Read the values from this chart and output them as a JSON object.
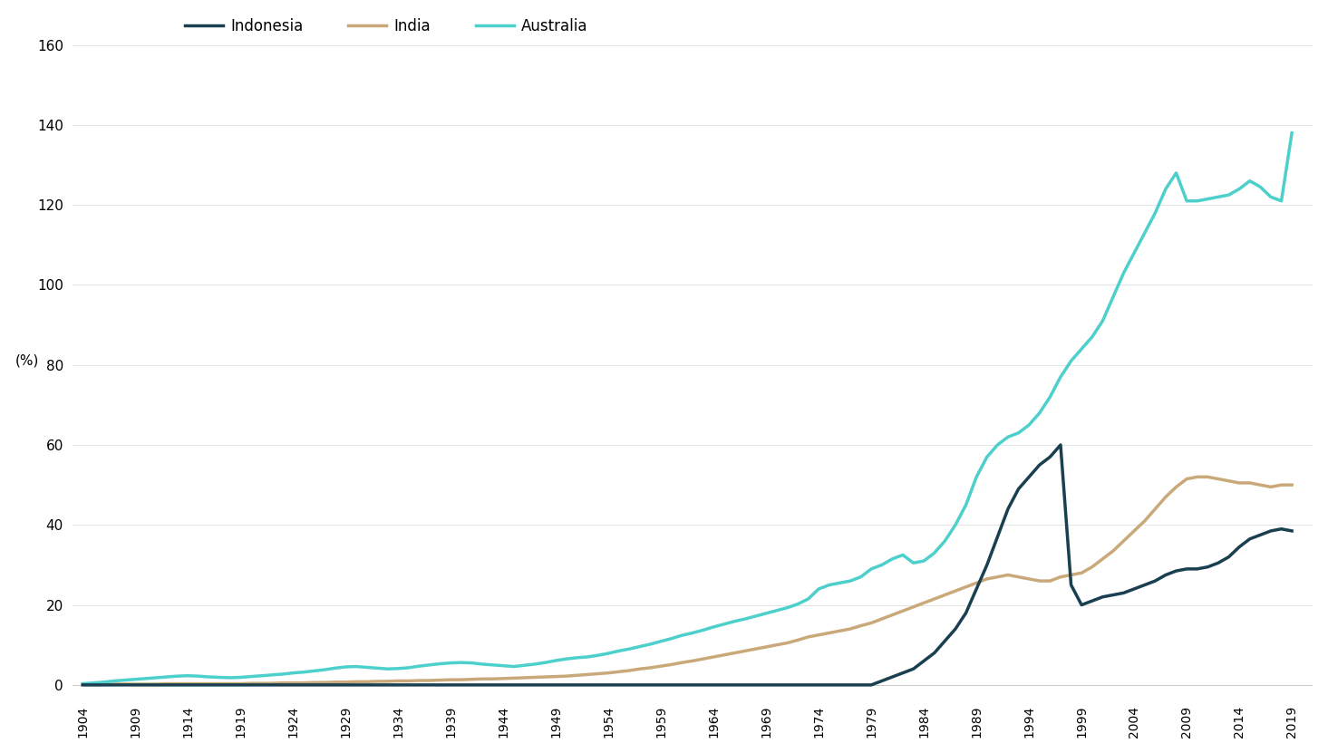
{
  "ylabel": "(%)",
  "background_color": "#ffffff",
  "colors": {
    "Indonesia": "#1a3f50",
    "India": "#c9a97a",
    "Australia": "#4dd0cc"
  },
  "line_width": 2.5,
  "yticks": [
    0,
    20,
    40,
    60,
    80,
    100,
    120,
    140,
    160
  ],
  "ylim": [
    -3,
    165
  ],
  "xlim": [
    1903,
    2021
  ],
  "xtick_years": [
    1904,
    1909,
    1914,
    1919,
    1924,
    1929,
    1934,
    1939,
    1944,
    1949,
    1954,
    1959,
    1964,
    1969,
    1974,
    1979,
    1984,
    1989,
    1994,
    1999,
    2004,
    2009,
    2014,
    2019
  ],
  "australia": {
    "years": [
      1904,
      1905,
      1906,
      1907,
      1908,
      1909,
      1910,
      1911,
      1912,
      1913,
      1914,
      1915,
      1916,
      1917,
      1918,
      1919,
      1920,
      1921,
      1922,
      1923,
      1924,
      1925,
      1926,
      1927,
      1928,
      1929,
      1930,
      1931,
      1932,
      1933,
      1934,
      1935,
      1936,
      1937,
      1938,
      1939,
      1940,
      1941,
      1942,
      1943,
      1944,
      1945,
      1946,
      1947,
      1948,
      1949,
      1950,
      1951,
      1952,
      1953,
      1954,
      1955,
      1956,
      1957,
      1958,
      1959,
      1960,
      1961,
      1962,
      1963,
      1964,
      1965,
      1966,
      1967,
      1968,
      1969,
      1970,
      1971,
      1972,
      1973,
      1974,
      1975,
      1976,
      1977,
      1978,
      1979,
      1980,
      1981,
      1982,
      1983,
      1984,
      1985,
      1986,
      1987,
      1988,
      1989,
      1990,
      1991,
      1992,
      1993,
      1994,
      1995,
      1996,
      1997,
      1998,
      1999,
      2000,
      2001,
      2002,
      2003,
      2004,
      2005,
      2006,
      2007,
      2008,
      2009,
      2010,
      2011,
      2012,
      2013,
      2014,
      2015,
      2016,
      2017,
      2018,
      2019
    ],
    "values": [
      0.3,
      0.5,
      0.7,
      1.0,
      1.2,
      1.4,
      1.6,
      1.8,
      2.0,
      2.2,
      2.3,
      2.2,
      2.0,
      1.9,
      1.8,
      1.9,
      2.1,
      2.3,
      2.5,
      2.7,
      3.0,
      3.2,
      3.5,
      3.8,
      4.2,
      4.5,
      4.6,
      4.4,
      4.2,
      4.0,
      4.1,
      4.3,
      4.7,
      5.0,
      5.3,
      5.5,
      5.6,
      5.5,
      5.2,
      5.0,
      4.8,
      4.6,
      4.9,
      5.2,
      5.6,
      6.1,
      6.5,
      6.8,
      7.0,
      7.4,
      7.9,
      8.5,
      9.0,
      9.6,
      10.2,
      10.9,
      11.6,
      12.4,
      13.0,
      13.7,
      14.5,
      15.2,
      15.9,
      16.5,
      17.2,
      17.9,
      18.6,
      19.3,
      20.2,
      21.5,
      24.0,
      25.0,
      25.5,
      26.0,
      27.0,
      29.0,
      30.0,
      31.5,
      32.5,
      30.5,
      31.0,
      33.0,
      36.0,
      40.0,
      45.0,
      52.0,
      57.0,
      60.0,
      62.0,
      63.0,
      65.0,
      68.0,
      72.0,
      77.0,
      81.0,
      84.0,
      87.0,
      91.0,
      97.0,
      103.0,
      108.0,
      113.0,
      118.0,
      124.0,
      128.0,
      121.0,
      121.0,
      121.5,
      122.0,
      122.5,
      124.0,
      126.0,
      124.5,
      122.0,
      121.0,
      138.0
    ]
  },
  "india": {
    "years": [
      1904,
      1905,
      1906,
      1907,
      1908,
      1909,
      1910,
      1911,
      1912,
      1913,
      1914,
      1915,
      1916,
      1917,
      1918,
      1919,
      1920,
      1921,
      1922,
      1923,
      1924,
      1925,
      1926,
      1927,
      1928,
      1929,
      1930,
      1931,
      1932,
      1933,
      1934,
      1935,
      1936,
      1937,
      1938,
      1939,
      1940,
      1941,
      1942,
      1943,
      1944,
      1945,
      1946,
      1947,
      1948,
      1949,
      1950,
      1951,
      1952,
      1953,
      1954,
      1955,
      1956,
      1957,
      1958,
      1959,
      1960,
      1961,
      1962,
      1963,
      1964,
      1965,
      1966,
      1967,
      1968,
      1969,
      1970,
      1971,
      1972,
      1973,
      1974,
      1975,
      1976,
      1977,
      1978,
      1979,
      1980,
      1981,
      1982,
      1983,
      1984,
      1985,
      1986,
      1987,
      1988,
      1989,
      1990,
      1991,
      1992,
      1993,
      1994,
      1995,
      1996,
      1997,
      1998,
      1999,
      2000,
      2001,
      2002,
      2003,
      2004,
      2005,
      2006,
      2007,
      2008,
      2009,
      2010,
      2011,
      2012,
      2013,
      2014,
      2015,
      2016,
      2017,
      2018,
      2019
    ],
    "values": [
      0.1,
      0.1,
      0.1,
      0.2,
      0.2,
      0.2,
      0.2,
      0.2,
      0.3,
      0.3,
      0.3,
      0.3,
      0.3,
      0.3,
      0.3,
      0.3,
      0.4,
      0.4,
      0.4,
      0.5,
      0.5,
      0.5,
      0.6,
      0.6,
      0.7,
      0.7,
      0.8,
      0.8,
      0.9,
      0.9,
      1.0,
      1.0,
      1.1,
      1.1,
      1.2,
      1.3,
      1.3,
      1.4,
      1.5,
      1.5,
      1.6,
      1.7,
      1.8,
      1.9,
      2.0,
      2.1,
      2.2,
      2.4,
      2.6,
      2.8,
      3.0,
      3.3,
      3.6,
      4.0,
      4.3,
      4.7,
      5.1,
      5.6,
      6.0,
      6.5,
      7.0,
      7.5,
      8.0,
      8.5,
      9.0,
      9.5,
      10.0,
      10.5,
      11.2,
      12.0,
      12.5,
      13.0,
      13.5,
      14.0,
      14.8,
      15.5,
      16.5,
      17.5,
      18.5,
      19.5,
      20.5,
      21.5,
      22.5,
      23.5,
      24.5,
      25.5,
      26.5,
      27.0,
      27.5,
      27.0,
      26.5,
      26.0,
      26.0,
      27.0,
      27.5,
      28.0,
      29.5,
      31.5,
      33.5,
      36.0,
      38.5,
      41.0,
      44.0,
      47.0,
      49.5,
      51.5,
      52.0,
      52.0,
      51.5,
      51.0,
      50.5,
      50.5,
      50.0,
      49.5,
      50.0,
      50.0
    ]
  },
  "indonesia": {
    "years": [
      1904,
      1905,
      1906,
      1907,
      1908,
      1909,
      1910,
      1911,
      1912,
      1913,
      1914,
      1915,
      1916,
      1917,
      1918,
      1919,
      1920,
      1921,
      1922,
      1923,
      1924,
      1925,
      1926,
      1927,
      1928,
      1929,
      1930,
      1931,
      1932,
      1933,
      1934,
      1935,
      1936,
      1937,
      1938,
      1939,
      1940,
      1941,
      1942,
      1943,
      1944,
      1945,
      1946,
      1947,
      1948,
      1949,
      1950,
      1951,
      1952,
      1953,
      1954,
      1955,
      1956,
      1957,
      1958,
      1959,
      1960,
      1961,
      1962,
      1963,
      1964,
      1965,
      1966,
      1967,
      1968,
      1969,
      1970,
      1971,
      1972,
      1973,
      1974,
      1975,
      1976,
      1977,
      1978,
      1979,
      1980,
      1981,
      1982,
      1983,
      1984,
      1985,
      1986,
      1987,
      1988,
      1989,
      1990,
      1991,
      1992,
      1993,
      1994,
      1995,
      1996,
      1997,
      1998,
      1999,
      2000,
      2001,
      2002,
      2003,
      2004,
      2005,
      2006,
      2007,
      2008,
      2009,
      2010,
      2011,
      2012,
      2013,
      2014,
      2015,
      2016,
      2017,
      2018,
      2019
    ],
    "values": [
      0,
      0,
      0,
      0,
      0,
      0,
      0,
      0,
      0,
      0,
      0,
      0,
      0,
      0,
      0,
      0,
      0,
      0,
      0,
      0,
      0,
      0,
      0,
      0,
      0,
      0,
      0,
      0,
      0,
      0,
      0,
      0,
      0,
      0,
      0,
      0,
      0,
      0,
      0,
      0,
      0,
      0,
      0,
      0,
      0,
      0,
      0,
      0,
      0,
      0,
      0,
      0,
      0,
      0,
      0,
      0,
      0,
      0,
      0,
      0,
      0,
      0,
      0,
      0,
      0,
      0,
      0,
      0,
      0,
      0,
      0,
      0,
      0,
      0,
      0,
      0,
      1.0,
      2.0,
      3.0,
      4.0,
      6.0,
      8.0,
      11.0,
      14.0,
      18.0,
      24.0,
      30.0,
      37.0,
      44.0,
      49.0,
      52.0,
      55.0,
      57.0,
      60.0,
      25.0,
      20.0,
      21.0,
      22.0,
      22.5,
      23.0,
      24.0,
      25.0,
      26.0,
      27.5,
      28.5,
      29.0,
      29.0,
      29.5,
      30.5,
      32.0,
      34.5,
      36.5,
      37.5,
      38.5,
      39.0,
      38.5
    ]
  }
}
